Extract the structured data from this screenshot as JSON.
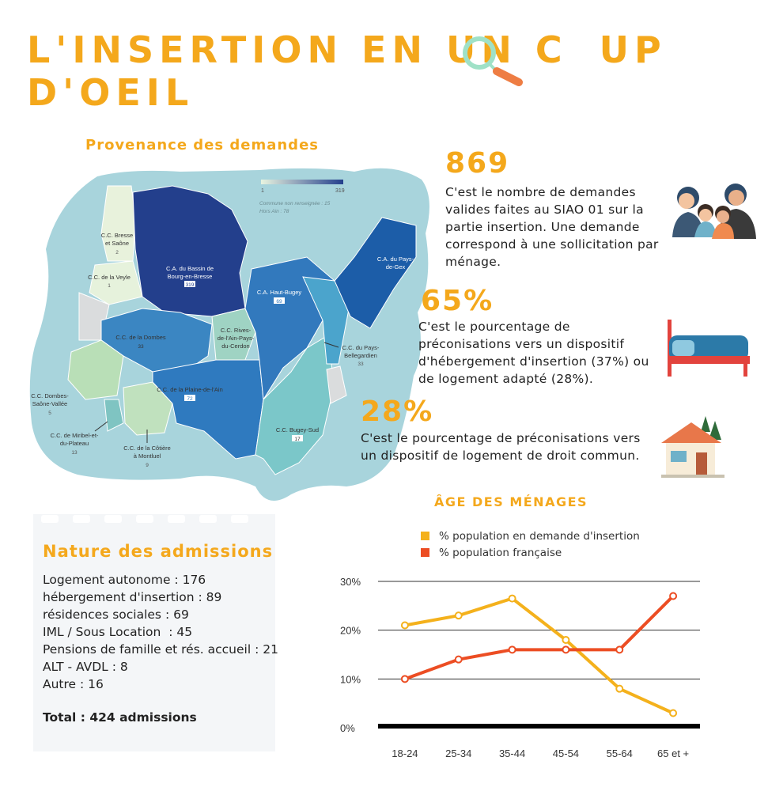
{
  "header": {
    "title_line1_a": "L'INSERTION EN UN C",
    "title_ring": "O",
    "title_line1_b": "UP",
    "title_line2": "D'OEIL",
    "magnifier_icon": "magnifier-icon"
  },
  "map": {
    "title": "Provenance des demandes",
    "scale_min": "1",
    "scale_max": "319",
    "note_unknown": "Commune non renseignée : 15",
    "note_outside": "Hors Ain : 78",
    "colors": {
      "low": "#e8f4e0",
      "high": "#233f8c",
      "background": "#a8d4dc"
    },
    "regions": [
      {
        "name": "C.C. Bresse et Saône",
        "value": "2"
      },
      {
        "name": "C.C. de la Veyle",
        "value": "1"
      },
      {
        "name": "C.A. du Bassin de Bourg-en-Bresse",
        "value": "319"
      },
      {
        "name": "C.A. du Pays-de-Gex",
        "value": ""
      },
      {
        "name": "C.A. Haut-Bugey",
        "value": "69"
      },
      {
        "name": "C.C. Rives-de-l'Ain-Pays-du-Cerdon",
        "value": ""
      },
      {
        "name": "C.C. de la Dombes",
        "value": "33"
      },
      {
        "name": "C.C. du Pays-Bellegardien",
        "value": "33"
      },
      {
        "name": "C.C. Dombes-Saône-Vallée",
        "value": "5"
      },
      {
        "name": "C.C. de la Plaine-de-l'Ain",
        "value": "72"
      },
      {
        "name": "C.C. de Miribel-et-du-Plateau",
        "value": "13"
      },
      {
        "name": "C.C. de la Côtière à Montluel",
        "value": "9"
      },
      {
        "name": "C.C. Bugey-Sud",
        "value": "17"
      }
    ]
  },
  "stats": [
    {
      "value": "869",
      "text": "C'est le nombre de demandes valides faites au SIAO 01 sur la partie insertion. Une demande correspond à une sollicitation par ménage.",
      "icon": "family-icon"
    },
    {
      "value": "65%",
      "text": "C'est le pourcentage de préconisations vers un dispositif d'hébergement d'insertion (37%) ou de logement adapté (28%).",
      "icon": "bed-icon"
    },
    {
      "value": "28%",
      "text": "C'est le pourcentage de préconisations vers un dispositif de logement de droit commun.",
      "icon": "house-icon"
    }
  ],
  "admissions": {
    "title": "Nature des admissions",
    "items": [
      "Logement autonome : 176",
      "hébergement d'insertion : 89",
      "résidences sociales : 69",
      "IML / Sous Location  : 45",
      "Pensions de famille et rés. accueil : 21",
      "ALT - AVDL : 8",
      "Autre : 16"
    ],
    "total": "Total : 424 admissions"
  },
  "chart_data": {
    "type": "line",
    "title": "ÂGE DES MÉNAGES",
    "categories": [
      "18-24",
      "25-34",
      "35-44",
      "45-54",
      "55-64",
      "65 et +"
    ],
    "y_ticks": [
      "30%",
      "20%",
      "10%",
      "0%"
    ],
    "ylim": [
      0,
      30
    ],
    "grid": true,
    "legend_position": "top-left",
    "series": [
      {
        "name": "% population en demande d'insertion",
        "color": "#f4b11c",
        "values": [
          21,
          23,
          26.5,
          18,
          8,
          3
        ]
      },
      {
        "name": "% population française",
        "color": "#ec4d23",
        "values": [
          10,
          14,
          16,
          16,
          16,
          27
        ]
      }
    ]
  }
}
